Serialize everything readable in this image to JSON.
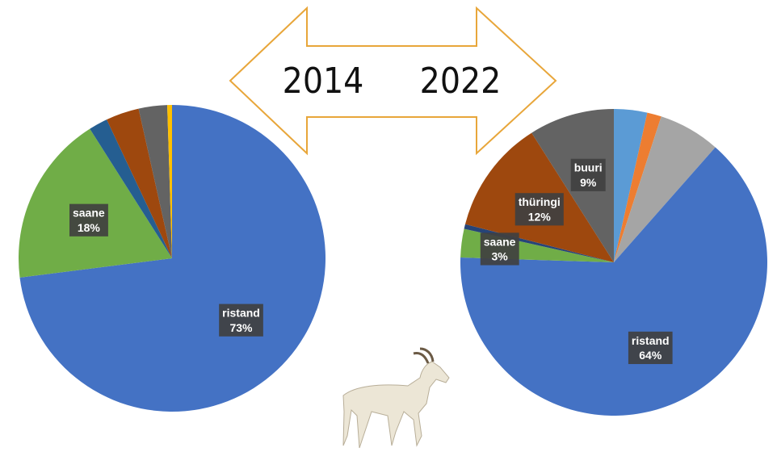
{
  "chart_data": [
    {
      "type": "pie",
      "title": "2014",
      "categories": [
        "ristand",
        "saane",
        null,
        null,
        null,
        null
      ],
      "values": [
        73,
        18,
        2,
        3.5,
        3,
        0.5
      ],
      "value_labels": [
        "73%",
        "18%",
        null,
        null,
        null,
        null
      ],
      "colors": [
        "#4472c4",
        "#70ad47",
        "#255e91",
        "#9e480e",
        "#636363",
        "#ffc000"
      ]
    },
    {
      "type": "pie",
      "title": "2022",
      "categories": [
        null,
        null,
        null,
        "ristand",
        "saane",
        null,
        "thüringi",
        "buuri"
      ],
      "values": [
        3.5,
        1.5,
        6.5,
        64,
        3,
        0.5,
        12,
        9
      ],
      "value_labels": [
        null,
        null,
        null,
        "64%",
        "3%",
        null,
        "12%",
        "9%"
      ],
      "colors": [
        "#5b9bd5",
        "#ed7d31",
        "#a5a5a5",
        "#4472c4",
        "#70ad47",
        "#264478",
        "#9e480e",
        "#636363"
      ]
    }
  ]
}
